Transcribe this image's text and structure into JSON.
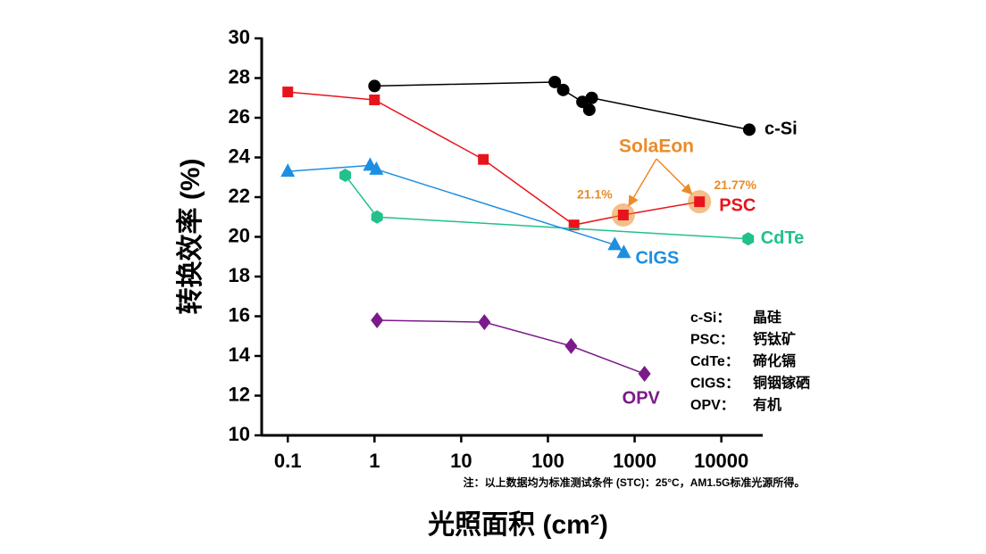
{
  "chart_data": {
    "type": "line",
    "xlabel": "光照面积 (cm²)",
    "ylabel": "转换效率 (%)",
    "xscale": "log",
    "xlim": [
      0.05,
      30000
    ],
    "xticks": [
      0.1,
      1,
      10,
      100,
      1000,
      10000
    ],
    "ylim": [
      10,
      30
    ],
    "yticks": [
      10,
      12,
      14,
      16,
      18,
      20,
      22,
      24,
      26,
      28,
      30
    ],
    "series": [
      {
        "name": "c-Si",
        "color": "#000000",
        "marker": "circle",
        "x": [
          1,
          120,
          150,
          250,
          300,
          320,
          21000
        ],
        "values": [
          27.6,
          27.8,
          27.4,
          26.8,
          26.4,
          27.0,
          25.4
        ]
      },
      {
        "name": "PSC",
        "color": "#e8141b",
        "marker": "square",
        "x": [
          0.1,
          1,
          18,
          200,
          740,
          5600
        ],
        "values": [
          27.3,
          26.9,
          23.9,
          20.6,
          21.1,
          21.77
        ],
        "value_labels": [
          null,
          null,
          null,
          null,
          "21.1%",
          "21.77%"
        ]
      },
      {
        "name": "CdTe",
        "color": "#22c08c",
        "marker": "hexagon",
        "x": [
          0.46,
          1.07,
          20400
        ],
        "values": [
          23.1,
          21.0,
          19.9
        ]
      },
      {
        "name": "CIGS",
        "color": "#1d8fe1",
        "marker": "triangle",
        "x": [
          0.1,
          0.89,
          1.05,
          590,
          750
        ],
        "values": [
          23.3,
          23.6,
          23.4,
          19.6,
          19.2
        ]
      },
      {
        "name": "OPV",
        "color": "#7b1a8a",
        "marker": "diamond",
        "x": [
          1.07,
          18.5,
          185,
          1300
        ],
        "values": [
          15.8,
          15.7,
          14.5,
          13.1
        ]
      }
    ],
    "annotation": {
      "text": "SolaEon",
      "color": "#e98b2a"
    },
    "notes": [
      {
        "abbr": "c-Si：",
        "name": "晶硅"
      },
      {
        "abbr": "PSC：",
        "name": "钙钛矿"
      },
      {
        "abbr": "CdTe：",
        "name": "碲化镉"
      },
      {
        "abbr": "CIGS：",
        "name": "铜铟镓硒"
      },
      {
        "abbr": "OPV：",
        "name": "有机"
      }
    ],
    "footnote": "注：以上数据均为标准测试条件 (STC)：25°C，AM1.5G标准光源所得。"
  }
}
